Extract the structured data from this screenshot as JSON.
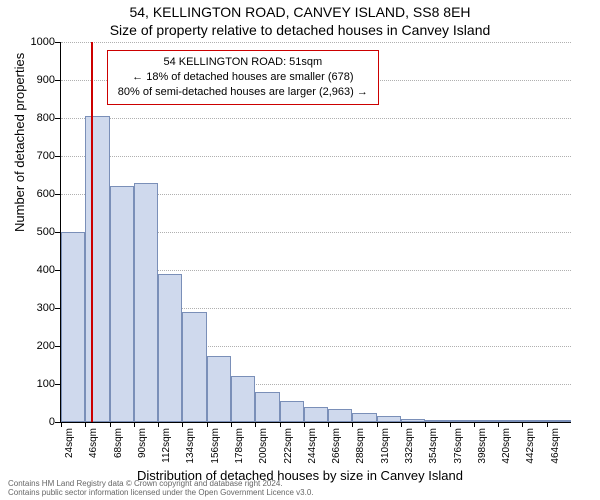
{
  "title_line1": "54, KELLINGTON ROAD, CANVEY ISLAND, SS8 8EH",
  "title_line2": "Size of property relative to detached houses in Canvey Island",
  "ylabel": "Number of detached properties",
  "xlabel": "Distribution of detached houses by size in Canvey Island",
  "chart": {
    "type": "histogram",
    "ylim": [
      0,
      1000
    ],
    "ytick_step": 100,
    "background_color": "#ffffff",
    "grid_color": "#b0b0b0",
    "bar_fill": "#cfd9ed",
    "bar_stroke": "#7a8fb8",
    "refline_color": "#cc0000",
    "refline_x_sqm": 51,
    "bin_width_sqm": 22,
    "x_start_sqm": 24,
    "categories": [
      "24sqm",
      "46sqm",
      "68sqm",
      "90sqm",
      "112sqm",
      "134sqm",
      "156sqm",
      "178sqm",
      "200sqm",
      "222sqm",
      "244sqm",
      "266sqm",
      "288sqm",
      "310sqm",
      "332sqm",
      "354sqm",
      "376sqm",
      "398sqm",
      "420sqm",
      "442sqm",
      "464sqm"
    ],
    "values": [
      500,
      805,
      620,
      630,
      390,
      290,
      175,
      120,
      80,
      55,
      40,
      35,
      25,
      15,
      8,
      6,
      5,
      4,
      5,
      3,
      0
    ]
  },
  "callout": {
    "line1": "54 KELLINGTON ROAD: 51sqm",
    "line2": "← 18% of detached houses are smaller (678)",
    "line3": "80% of semi-detached houses are larger (2,963) →"
  },
  "footer": {
    "line1": "Contains HM Land Registry data © Crown copyright and database right 2024.",
    "line2": "Contains public sector information licensed under the Open Government Licence v3.0."
  }
}
